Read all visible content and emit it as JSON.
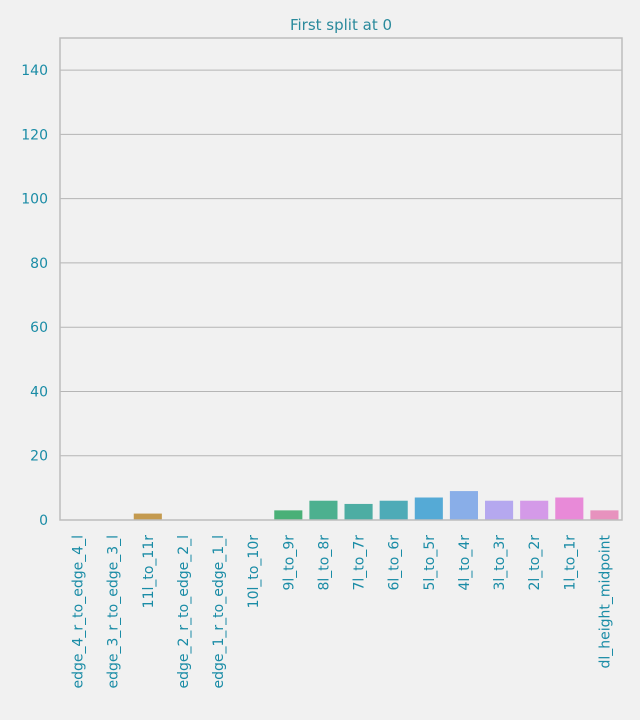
{
  "chart_data": {
    "type": "bar",
    "title": "First split at 0",
    "xlabel": "",
    "ylabel": "",
    "ylim": [
      0,
      150
    ],
    "yticks": [
      0,
      20,
      40,
      60,
      80,
      100,
      120,
      140
    ],
    "grid": true,
    "categories": [
      "edge_4_r_to_edge_4_l",
      "edge_3_r_to_edge_3_l",
      "11l_to_11r",
      "edge_2_r_to_edge_2_l",
      "edge_1_r_to_edge_1_l",
      "10l_to_10r",
      "9l_to_9r",
      "8l_to_8r",
      "7l_to_7r",
      "6l_to_6r",
      "5l_to_5r",
      "4l_to_4r",
      "3l_to_3r",
      "2l_to_2r",
      "1l_to_1r",
      "dl_height_midpoint"
    ],
    "values": [
      0,
      0,
      2,
      0,
      0,
      0,
      3,
      6,
      5,
      6,
      7,
      9,
      6,
      6,
      7,
      3
    ],
    "colors": [
      "#f27f7f",
      "#e58f55",
      "#c49a4f",
      "#a8a94b",
      "#8cb34e",
      "#5cba55",
      "#4ab077",
      "#4cb08f",
      "#4dada3",
      "#4eabb7",
      "#55aad6",
      "#89aee8",
      "#b5a8ef",
      "#d49ae8",
      "#e88ad8",
      "#e792be"
    ]
  }
}
